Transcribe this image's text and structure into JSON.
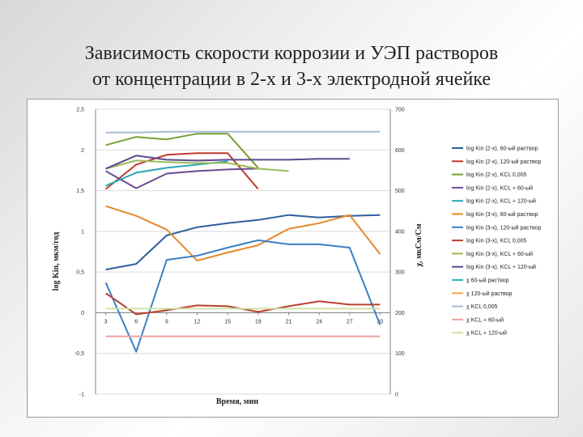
{
  "slide": {
    "title_line1": "Зависимость скорости коррозии и УЭП растворов",
    "title_line2": "от концентрации в 2-х и 3-х электродной ячейке"
  },
  "chart_data": {
    "type": "line",
    "x": [
      3,
      6,
      9,
      12,
      15,
      18,
      21,
      24,
      27,
      30
    ],
    "x_ticks": [
      "3",
      "6",
      "9",
      "12",
      "15",
      "18",
      "21",
      "24",
      "27",
      "30"
    ],
    "xlabel": "Время, мин",
    "ylabel": "log Kin, мкм/год",
    "y2label": "χ, мкСм/См",
    "ylim": [
      -1,
      2.5
    ],
    "y_ticks": [
      "2,5",
      "2",
      "1,5",
      "1",
      "0,5",
      "0",
      "-0,5",
      "-1"
    ],
    "y2lim": [
      0,
      700
    ],
    "y2_ticks": [
      "700",
      "600",
      "500",
      "400",
      "300",
      "200",
      "100",
      "0"
    ],
    "grid": true,
    "legend_position": "right",
    "series": [
      {
        "name": "log Kin (2-х), 60-ый раствор",
        "axis": "left",
        "color": "#2e5e9e",
        "values": [
          0.53,
          0.6,
          0.95,
          1.05,
          1.1,
          1.14,
          1.2,
          1.17,
          1.19,
          1.2
        ]
      },
      {
        "name": "log Kin (2-х), 120-ый раствор",
        "axis": "left",
        "color": "#c0392b",
        "values": [
          1.52,
          1.82,
          1.94,
          1.96,
          1.96,
          1.52,
          null,
          null,
          null,
          null
        ]
      },
      {
        "name": "log Kin (2-х), KCL 0,005",
        "axis": "left",
        "color": "#77a033",
        "values": [
          2.06,
          2.16,
          2.13,
          2.2,
          2.2,
          1.78,
          null,
          null,
          null,
          null
        ]
      },
      {
        "name": "log Kin (2-х), KCL + 60-ый",
        "axis": "left",
        "color": "#6a4c93",
        "values": [
          1.74,
          1.53,
          1.71,
          1.74,
          1.76,
          1.77,
          null,
          null,
          null,
          null
        ]
      },
      {
        "name": "log Kin (2-х), KCL + 120-ый",
        "axis": "left",
        "color": "#2ca6b5",
        "values": [
          1.56,
          1.72,
          1.78,
          1.82,
          1.86,
          null,
          null,
          null,
          null,
          null
        ]
      },
      {
        "name": "log Kin (3-х), 60-ый раствор",
        "axis": "left",
        "color": "#e48a2a",
        "values": [
          1.31,
          1.19,
          1.02,
          0.64,
          0.74,
          0.83,
          1.03,
          1.1,
          1.2,
          0.72
        ]
      },
      {
        "name": "log Kin (3-х), 120-ый раствор",
        "axis": "left",
        "color": "#3b80c2",
        "values": [
          0.37,
          -0.48,
          0.65,
          0.7,
          0.8,
          0.89,
          0.84,
          0.84,
          0.8,
          -0.15
        ]
      },
      {
        "name": "log Kin (3-х), KCL 0,005",
        "axis": "left",
        "color": "#b8412f",
        "values": [
          0.24,
          -0.02,
          0.03,
          0.09,
          0.08,
          0.01,
          0.08,
          0.14,
          0.1,
          0.1
        ]
      },
      {
        "name": "log Kin (3-х), KCL + 60-ый",
        "axis": "left",
        "color": "#9bbb59",
        "values": [
          1.77,
          1.87,
          1.85,
          1.84,
          1.84,
          1.77,
          1.74,
          null,
          null,
          null
        ]
      },
      {
        "name": "log Kin (3-х), KCL + 120-ый",
        "axis": "left",
        "color": "#5b4a8a",
        "values": [
          1.77,
          1.93,
          1.88,
          1.87,
          1.88,
          1.88,
          1.88,
          1.89,
          1.89,
          null
        ]
      },
      {
        "name": "χ 60-ый раствор",
        "axis": "right",
        "color": "#31b5c4",
        "values": [
          null,
          null,
          null,
          null,
          null,
          null,
          null,
          null,
          null,
          null
        ]
      },
      {
        "name": "χ 120-ый раствор",
        "axis": "right",
        "color": "#f3a64a",
        "values": [
          null,
          null,
          null,
          null,
          null,
          null,
          null,
          null,
          null,
          null
        ]
      },
      {
        "name": "χ KCL 0,005",
        "axis": "right",
        "color": "#aab8d8",
        "values": [
          643,
          643,
          645,
          645,
          645,
          645,
          645,
          645,
          645,
          645
        ]
      },
      {
        "name": "χ KCL + 60-ый",
        "axis": "right",
        "color": "#e6a3a0",
        "values": [
          142,
          142,
          142,
          142,
          142,
          142,
          142,
          142,
          142,
          142
        ]
      },
      {
        "name": "χ KCL + 120-ый",
        "axis": "right",
        "color": "#cfe2a6",
        "values": [
          210,
          210,
          210,
          210,
          210,
          210,
          210,
          210,
          210,
          210
        ]
      }
    ]
  }
}
